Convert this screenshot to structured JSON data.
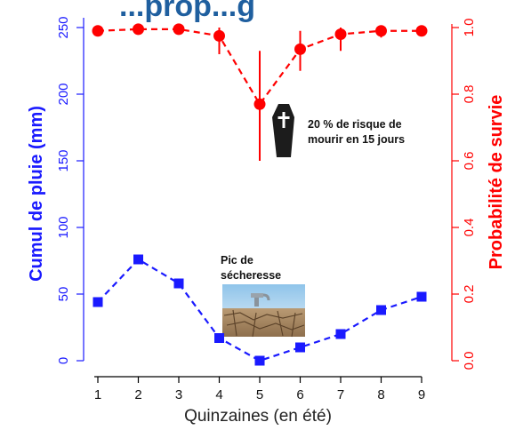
{
  "header_fragment": "...prop...g",
  "chart_data": {
    "type": "line",
    "title": "",
    "xlabel": "Quinzaines (en été)",
    "ylabel_left": "Cumul de pluie (mm)",
    "ylabel_right": "Probabilité de survie",
    "x": [
      1,
      2,
      3,
      4,
      5,
      6,
      7,
      8,
      9
    ],
    "xlim": [
      1,
      9
    ],
    "ylim_left": [
      0,
      250
    ],
    "ylim_right": [
      0,
      1
    ],
    "left_ticks": [
      "0",
      "50",
      "100",
      "150",
      "200",
      "250"
    ],
    "right_ticks": [
      "0.0",
      "0.2",
      "0.4",
      "0.6",
      "0.8",
      "1.0"
    ],
    "x_ticks": [
      "1",
      "2",
      "3",
      "4",
      "5",
      "6",
      "7",
      "8",
      "9"
    ],
    "grid": false,
    "legend": "none",
    "series": [
      {
        "axis": "left",
        "marker": "square",
        "color": "#1a1aff",
        "values": [
          44,
          76,
          58,
          17,
          0,
          10,
          20,
          38,
          48
        ]
      },
      {
        "axis": "right",
        "marker": "circle",
        "color": "#ff0000",
        "values": [
          0.99,
          0.995,
          0.995,
          0.975,
          0.77,
          0.935,
          0.98,
          0.99,
          0.99
        ],
        "error_low": [
          null,
          null,
          null,
          0.92,
          0.6,
          0.87,
          0.93,
          0.97,
          null
        ],
        "error_high": [
          null,
          null,
          null,
          1.0,
          0.93,
          0.99,
          1.0,
          1.0,
          null
        ]
      }
    ],
    "annotations": [
      {
        "id": "risk",
        "lines": [
          "20 % de risque de",
          "mourir en 15 jours"
        ],
        "icon": "coffin-icon"
      },
      {
        "id": "drought",
        "lines": [
          "Pic de",
          "sécheresse"
        ],
        "icon": "cracked-earth-photo"
      }
    ]
  }
}
